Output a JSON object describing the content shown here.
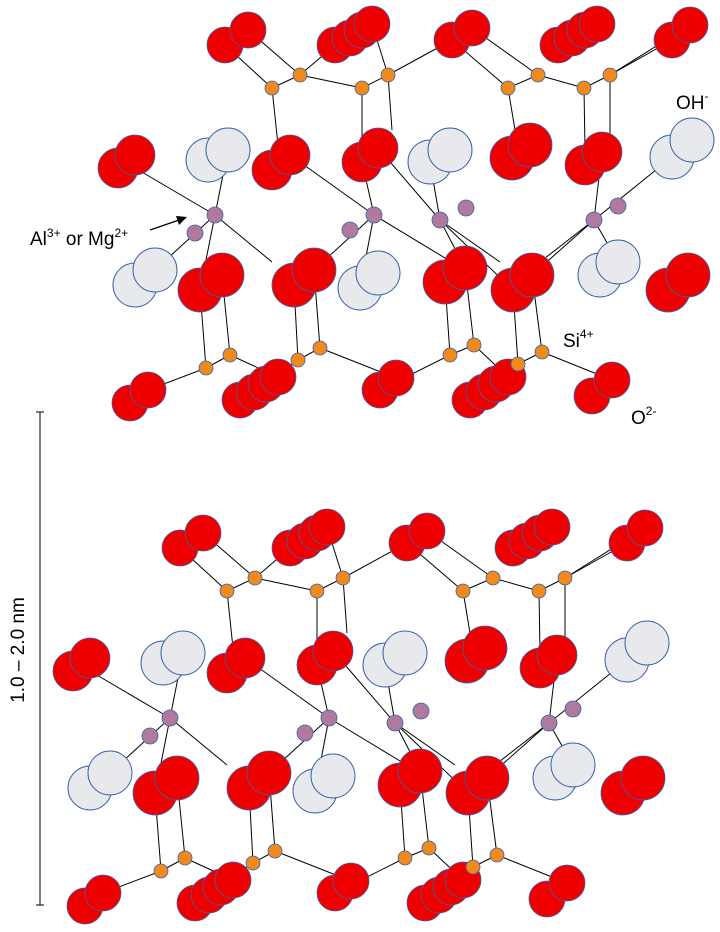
{
  "labels": {
    "cation": {
      "text": "Al",
      "sup1": "3+",
      "mid": " or Mg",
      "sup2": "2+"
    },
    "hydroxyl": {
      "text": "OH",
      "sup": "-"
    },
    "silicon": {
      "text": "Si",
      "sup": "4+"
    },
    "oxygen": {
      "text": "O",
      "sup": "2-"
    },
    "scale": "1.0 – 2.0 nm"
  },
  "colors": {
    "oxygen": "#ee0000",
    "hydroxyl": "#e8e9ec",
    "silicon": "#f08a1c",
    "cation": "#b07a9e",
    "bond": "#000000",
    "outline": "#3a63a8"
  },
  "layers": [
    "top-layer",
    "bottom-layer"
  ]
}
